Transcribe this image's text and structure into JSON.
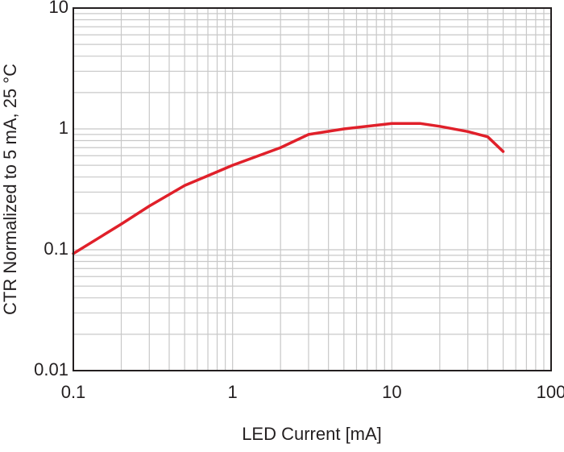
{
  "chart_data": {
    "type": "line",
    "x_label": "LED Current [mA]",
    "y_label": "CTR Normalized to 5 mA, 25 °C",
    "x": [
      0.1,
      0.2,
      0.3,
      0.5,
      1,
      2,
      3,
      5,
      10,
      15,
      20,
      30,
      40,
      50
    ],
    "series": [
      {
        "color": "#e0202a",
        "values": [
          0.093,
          0.163,
          0.23,
          0.34,
          0.5,
          0.7,
          0.9,
          1.0,
          1.11,
          1.11,
          1.05,
          0.95,
          0.86,
          0.65
        ]
      }
    ],
    "xlim": [
      0.1,
      100
    ],
    "xticks": [
      0.1,
      1,
      10,
      100
    ],
    "ylim": [
      0.01,
      10
    ],
    "yticks": [
      0.01,
      0.1,
      1,
      10
    ],
    "log_x": true,
    "log_y": true,
    "grid": true,
    "minor_grid": true
  }
}
